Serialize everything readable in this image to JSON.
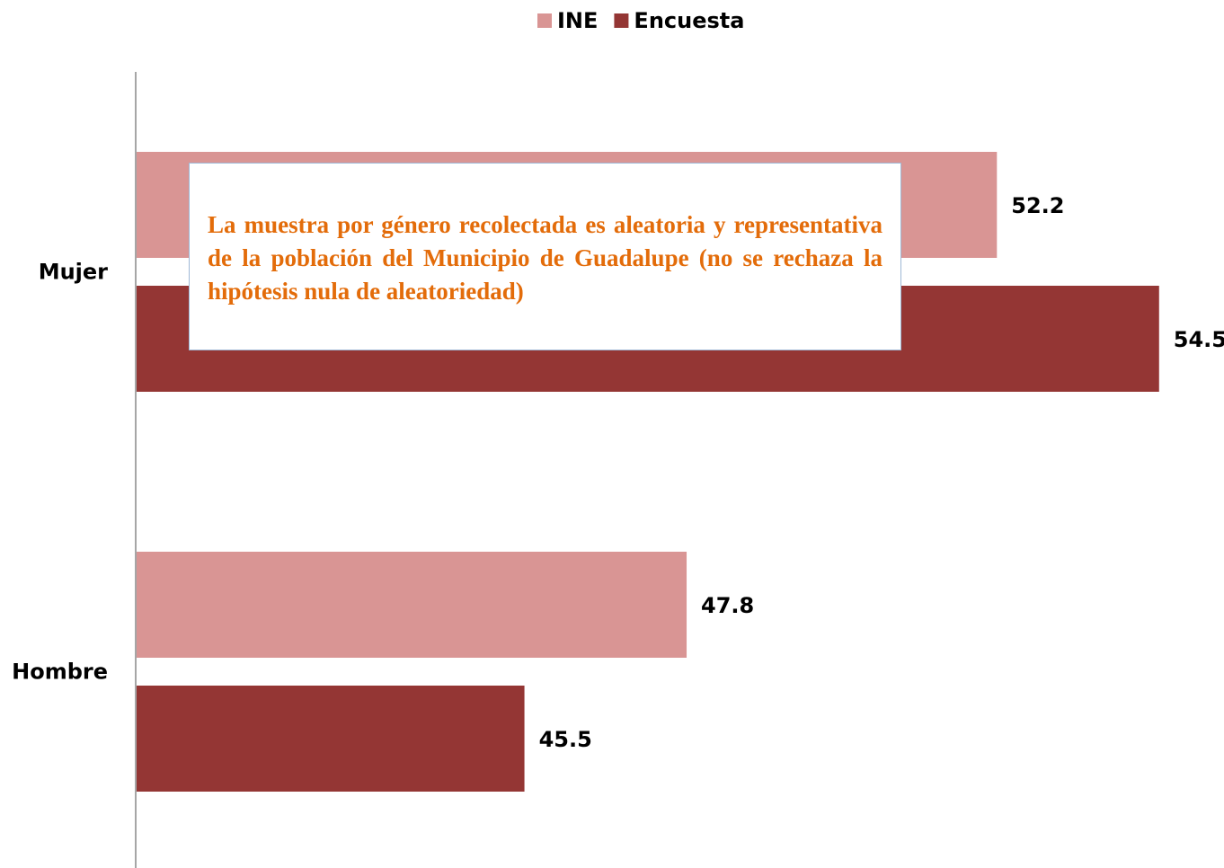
{
  "chart_data": {
    "type": "bar",
    "orientation": "horizontal",
    "categories": [
      "Mujer",
      "Hombre"
    ],
    "series": [
      {
        "name": "INE",
        "color": "#d99594",
        "values": [
          52.2,
          47.8
        ]
      },
      {
        "name": "Encuesta",
        "color": "#943634",
        "values": [
          54.5,
          45.5
        ]
      }
    ],
    "xlim": [
      40,
      55
    ],
    "legend": "top",
    "annotation": "La muestra por género recolectada es  aleatoria y representativa de la población del Municipio de Guadalupe (no se rechaza la hipótesis nula de aleatoriedad)"
  }
}
